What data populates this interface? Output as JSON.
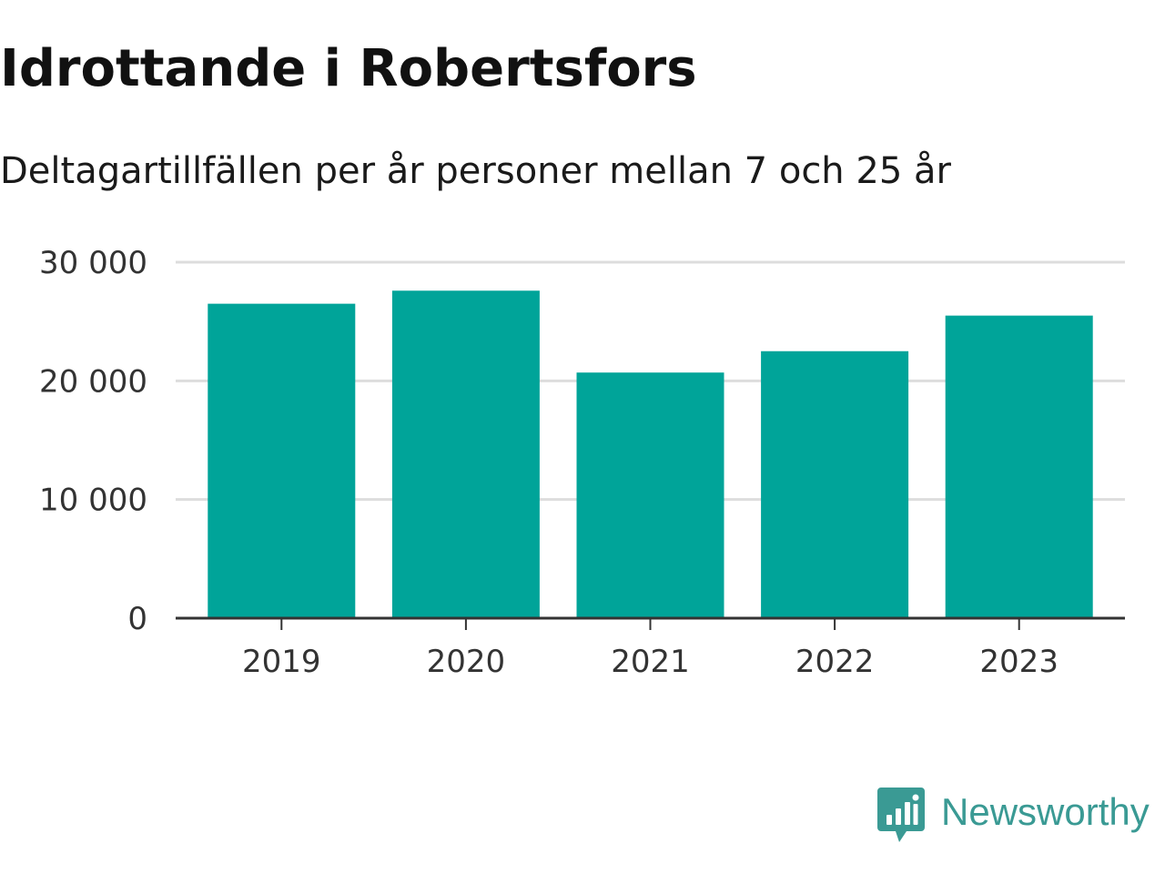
{
  "title": "Idrottande i Robertsfors",
  "subtitle": "Deltagartillfällen per år personer mellan 7 och 25 år",
  "colors": {
    "bar": "#00a499",
    "grid": "#dddddd",
    "axis": "#333333",
    "brand": "#3a9a94"
  },
  "chart_data": {
    "type": "bar",
    "title": "Idrottande i Robertsfors",
    "subtitle": "Deltagartillfällen per år personer mellan 7 och 25 år",
    "categories": [
      "2019",
      "2020",
      "2021",
      "2022",
      "2023"
    ],
    "values": [
      26500,
      27600,
      20700,
      22500,
      25500
    ],
    "ylim": [
      0,
      30000
    ],
    "yticks": [
      0,
      10000,
      20000,
      30000
    ],
    "ytick_labels": [
      "0",
      "10 000",
      "20 000",
      "30 000"
    ],
    "xlabel": "",
    "ylabel": "",
    "grid": true,
    "legend": "none"
  },
  "logo": {
    "icon": "bar-chart-speech-bubble-icon",
    "text": "Newsworthy"
  }
}
